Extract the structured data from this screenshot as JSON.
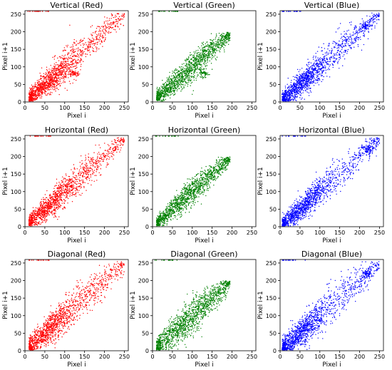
{
  "figure": {
    "background": "#ffffff"
  },
  "chart_data": [
    {
      "type": "scatter",
      "title": "Vertical (Red)",
      "xlabel": "Pixel i",
      "ylabel": "Pixel i+1",
      "xlim": [
        0,
        260
      ],
      "ylim": [
        0,
        260
      ],
      "x_ticks": [
        0,
        50,
        100,
        150,
        200,
        250
      ],
      "y_ticks": [
        0,
        50,
        100,
        150,
        200,
        250
      ],
      "color": "#ff0000",
      "series": [
        {
          "spread": 20,
          "x_range": [
            10,
            250
          ],
          "density_peak": 60,
          "secondary_cluster": [
            125,
            80
          ]
        }
      ]
    },
    {
      "type": "scatter",
      "title": "Vertical (Green)",
      "xlabel": "Pixel i",
      "ylabel": "Pixel i+1",
      "xlim": [
        0,
        260
      ],
      "ylim": [
        0,
        260
      ],
      "x_ticks": [
        0,
        50,
        100,
        150,
        200,
        250
      ],
      "y_ticks": [
        0,
        50,
        100,
        150,
        200,
        250
      ],
      "color": "#008000",
      "series": [
        {
          "spread": 18,
          "x_range": [
            10,
            195
          ],
          "density_peak": 80,
          "secondary_cluster": [
            130,
            80
          ]
        }
      ]
    },
    {
      "type": "scatter",
      "title": "Vertical (Blue)",
      "xlabel": "Pixel i",
      "ylabel": "Pixel i+1",
      "xlim": [
        0,
        260
      ],
      "ylim": [
        0,
        260
      ],
      "x_ticks": [
        0,
        50,
        100,
        150,
        200,
        250
      ],
      "y_ticks": [
        0,
        50,
        100,
        150,
        200,
        250
      ],
      "color": "#0000ff",
      "series": [
        {
          "spread": 20,
          "x_range": [
            5,
            250
          ],
          "density_peak": 50,
          "secondary_cluster": [
            215,
            215
          ]
        }
      ]
    },
    {
      "type": "scatter",
      "title": "Horizontal (Red)",
      "xlabel": "Pixel i",
      "ylabel": "Pixel i+1",
      "xlim": [
        0,
        260
      ],
      "ylim": [
        0,
        260
      ],
      "x_ticks": [
        0,
        50,
        100,
        150,
        200,
        250
      ],
      "y_ticks": [
        0,
        50,
        100,
        150,
        200,
        250
      ],
      "color": "#ff0000",
      "series": [
        {
          "spread": 20,
          "x_range": [
            10,
            250
          ],
          "density_peak": 60,
          "secondary_cluster": null
        }
      ]
    },
    {
      "type": "scatter",
      "title": "Horizontal (Green)",
      "xlabel": "Pixel i",
      "ylabel": "Pixel i+1",
      "xlim": [
        0,
        260
      ],
      "ylim": [
        0,
        260
      ],
      "x_ticks": [
        0,
        50,
        100,
        150,
        200,
        250
      ],
      "y_ticks": [
        0,
        50,
        100,
        150,
        200,
        250
      ],
      "color": "#008000",
      "series": [
        {
          "spread": 16,
          "x_range": [
            10,
            195
          ],
          "density_peak": 80,
          "secondary_cluster": null
        }
      ]
    },
    {
      "type": "scatter",
      "title": "Horizontal (Blue)",
      "xlabel": "Pixel i",
      "ylabel": "Pixel i+1",
      "xlim": [
        0,
        260
      ],
      "ylim": [
        0,
        260
      ],
      "x_ticks": [
        0,
        50,
        100,
        150,
        200,
        250
      ],
      "y_ticks": [
        0,
        50,
        100,
        150,
        200,
        250
      ],
      "color": "#0000ff",
      "series": [
        {
          "spread": 20,
          "x_range": [
            5,
            250
          ],
          "density_peak": 50,
          "secondary_cluster": [
            220,
            220
          ]
        }
      ]
    },
    {
      "type": "scatter",
      "title": "Diagonal (Red)",
      "xlabel": "Pixel i",
      "ylabel": "Pixel i+1",
      "xlim": [
        0,
        260
      ],
      "ylim": [
        0,
        260
      ],
      "x_ticks": [
        0,
        50,
        100,
        150,
        200,
        250
      ],
      "y_ticks": [
        0,
        50,
        100,
        150,
        200,
        250
      ],
      "color": "#ff0000",
      "series": [
        {
          "spread": 24,
          "x_range": [
            10,
            250
          ],
          "density_peak": 60,
          "secondary_cluster": null
        }
      ]
    },
    {
      "type": "scatter",
      "title": "Diagonal (Green)",
      "xlabel": "Pixel i",
      "ylabel": "Pixel i+1",
      "xlim": [
        0,
        260
      ],
      "ylim": [
        0,
        260
      ],
      "x_ticks": [
        0,
        50,
        100,
        150,
        200,
        250
      ],
      "y_ticks": [
        0,
        50,
        100,
        150,
        200,
        250
      ],
      "color": "#008000",
      "series": [
        {
          "spread": 22,
          "x_range": [
            10,
            195
          ],
          "density_peak": 80,
          "secondary_cluster": null
        }
      ]
    },
    {
      "type": "scatter",
      "title": "Diagonal (Blue)",
      "xlabel": "Pixel i",
      "ylabel": "Pixel i+1",
      "xlim": [
        0,
        260
      ],
      "ylim": [
        0,
        260
      ],
      "x_ticks": [
        0,
        50,
        100,
        150,
        200,
        250
      ],
      "y_ticks": [
        0,
        50,
        100,
        150,
        200,
        250
      ],
      "color": "#0000ff",
      "series": [
        {
          "spread": 24,
          "x_range": [
            5,
            250
          ],
          "density_peak": 50,
          "secondary_cluster": [
            220,
            220
          ]
        }
      ]
    }
  ]
}
